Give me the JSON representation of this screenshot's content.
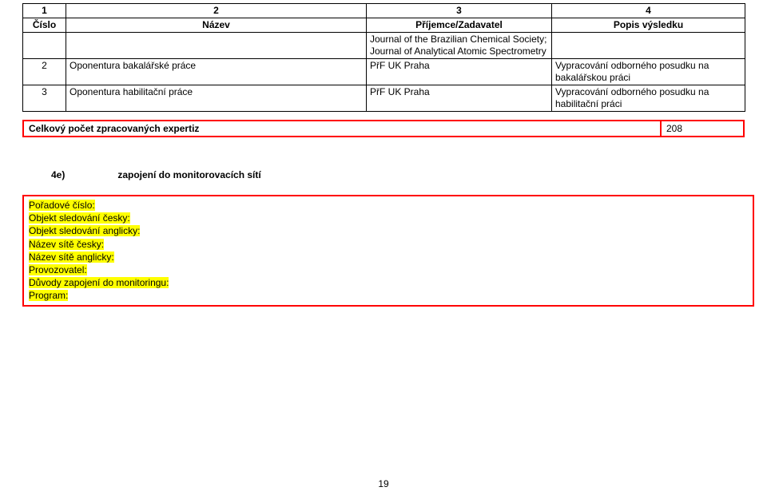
{
  "table": {
    "head_row_nums": [
      "1",
      "2",
      "3",
      "4"
    ],
    "head_row_labels": [
      "Číslo",
      "Název",
      "Příjemce/Zadavatel",
      "Popis výsledku"
    ],
    "rows": [
      {
        "num": "",
        "name": "",
        "recip": "Journal of the Brazilian Chemical Society; Journal of Analytical Atomic Spectrometry",
        "result": ""
      },
      {
        "num": "2",
        "name": "Oponentura bakalářské práce",
        "recip": "PřF UK Praha",
        "result": "Vypracování odborného posudku na bakalářskou práci"
      },
      {
        "num": "3",
        "name": "Oponentura habilitační práce",
        "recip": "PřF UK Praha",
        "result": "Vypracování odborného posudku na habilitační práci"
      }
    ]
  },
  "count": {
    "label": "Celkový počet zpracovaných expertiz",
    "value": "208"
  },
  "section4e": {
    "code": "4e)",
    "title": "zapojení do monitorovacích sítí"
  },
  "mon_fields": [
    "Pořadové číslo:",
    "Objekt sledování česky:",
    "Objekt sledování anglicky:",
    "Název sítě česky:",
    "Název sítě anglicky:",
    "Provozovatel:",
    "Důvody zapojení do monitoringu:",
    "Program:"
  ],
  "page_number": "19",
  "colors": {
    "border_red": "#ff0000",
    "highlight_yellow": "#ffff00",
    "text": "#000000",
    "background": "#ffffff"
  }
}
